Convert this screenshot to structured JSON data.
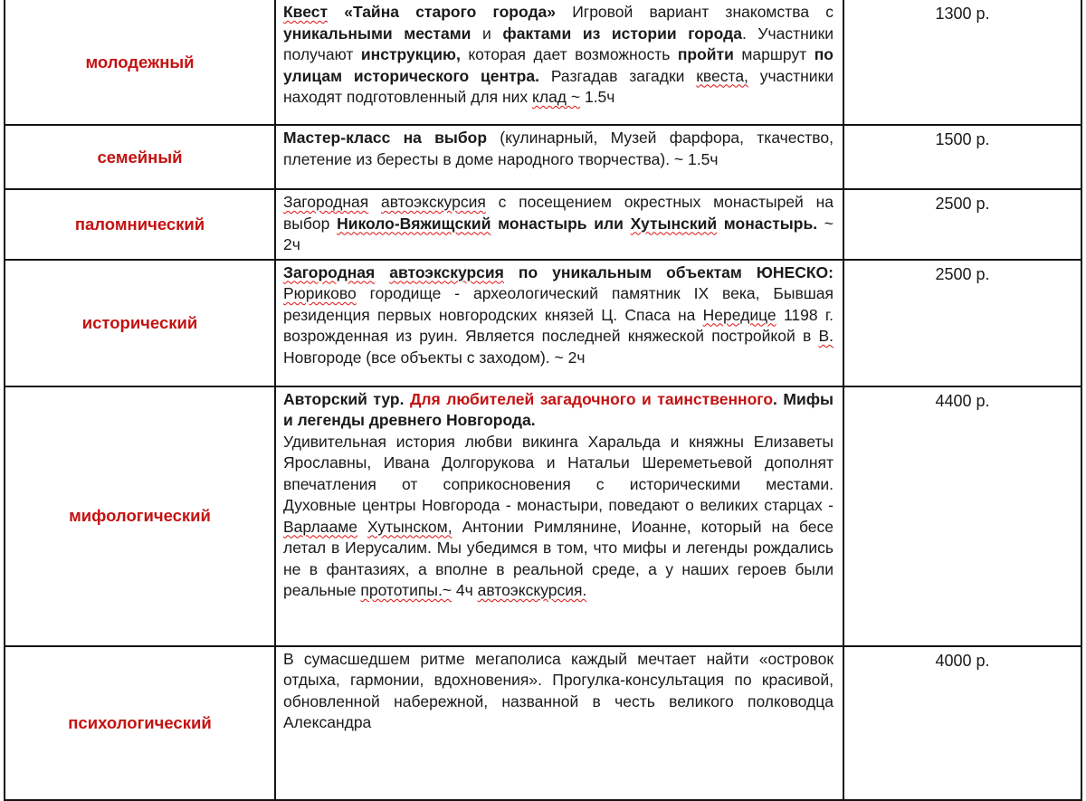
{
  "page": {
    "background": "#ffffff",
    "text_color": "#1a1a1a",
    "accent_red": "#c41212",
    "spellcheck_red": "#e01010",
    "border_color": "#141414",
    "currency_suffix": "р."
  },
  "table": {
    "rows": [
      {
        "type": "молодежный",
        "price": "1300 р.",
        "paragraphs": [
          {
            "runs": [
              {
                "text": "Квест",
                "b": true,
                "wavy": true
              },
              {
                "text": " «Тайна старого города»",
                "b": true
              },
              {
                "text": " Игровой вариант знакомства с "
              },
              {
                "text": "уникальными местами",
                "b": true
              },
              {
                "text": " и "
              },
              {
                "text": "фактами из истории города",
                "b": true
              },
              {
                "text": ". Участники получают "
              },
              {
                "text": "инструкцию,",
                "b": true
              },
              {
                "text": " которая дает возможность "
              },
              {
                "text": "пройти",
                "b": true
              },
              {
                "text": " маршрут "
              },
              {
                "text": "по улицам исторического центра.",
                "b": true
              },
              {
                "text": " Разгадав загадки "
              },
              {
                "text": "квеста,",
                "wavy": true
              },
              {
                "text": " участники находят подготовленный для них "
              },
              {
                "text": "клад ~",
                "wavy": true
              },
              {
                "text": " 1.5ч"
              }
            ]
          }
        ]
      },
      {
        "type": "семейный",
        "price": "1500 р.",
        "paragraphs": [
          {
            "runs": [
              {
                "text": "Мастер-класс на выбор",
                "b": true
              },
              {
                "text": " (кулинарный, Музей фарфора, ткачество, плетение из бересты в доме народного творчества). ~ 1.5ч"
              }
            ]
          }
        ]
      },
      {
        "type": "паломнический",
        "price": "2500 р.",
        "paragraphs": [
          {
            "runs": [
              {
                "text": "Загородная",
                "wavy": true
              },
              {
                "text": " "
              },
              {
                "text": "автоэкскурсия",
                "wavy": true
              },
              {
                "text": " с посещением окрестных монастырей на выбор "
              },
              {
                "text": "Николо-Вяжищский",
                "b": true,
                "wavy": true
              },
              {
                "text": " монастырь или ",
                "b": true
              },
              {
                "text": "Хутынский",
                "b": true,
                "wavy": true
              },
              {
                "text": " монастырь.",
                "b": true
              },
              {
                "text": " ~ 2ч"
              }
            ]
          }
        ]
      },
      {
        "type": "исторический",
        "price": "2500 р.",
        "paragraphs": [
          {
            "runs": [
              {
                "text": "Загородная",
                "b": true,
                "wavy": true
              },
              {
                "text": " ",
                "b": true
              },
              {
                "text": "автоэкскурсия",
                "b": true,
                "wavy": true
              },
              {
                "text": " по уникальным объектам ЮНЕСКО:",
                "b": true
              },
              {
                "text": " "
              },
              {
                "text": "Рюриково",
                "wavy": true
              },
              {
                "text": " городище - археологический памятник IX века, Бывшая резиденция первых новгородских князей Ц. Спаса на "
              },
              {
                "text": "Нередице",
                "wavy": true
              },
              {
                "text": " 1198 г. возрожденная из руин. Является последней княжеской постройкой в "
              },
              {
                "text": "В.",
                "wavy": true
              },
              {
                "text": " Новгороде (все объекты с заходом). ~ 2ч"
              }
            ]
          }
        ]
      },
      {
        "type": "мифологический",
        "price": "4400 р.",
        "paragraphs": [
          {
            "runs": [
              {
                "text": "Авторский тур. ",
                "b": true
              },
              {
                "text": "Для любителей загадочного и таинственного",
                "b": true,
                "red": true
              },
              {
                "text": ". Мифы и легенды древнего Новгорода.",
                "b": true
              }
            ]
          },
          {
            "justify_last": true,
            "runs": [
              {
                "text": "Удивительная история любви викинга Харальда и княжны Елизаветы Ярославны, Ивана Долгорукова и Натальи Шереметьевой дополнят впечатления от соприкосновения с историческими местами."
              }
            ]
          },
          {
            "runs": [
              {
                "text": "Духовные центры Новгорода - монастыри, поведают о великих старцах - "
              },
              {
                "text": "Варлааме",
                "wavy": true
              },
              {
                "text": " "
              },
              {
                "text": "Хутынском,",
                "wavy": true
              },
              {
                "text": " Антонии Римлянине, Иоанне, который на бесе летал в Иерусалим. Мы убедимся в том, что мифы и легенды рождались не в фантазиях, а вполне в реальной среде, а у наших героев были реальные "
              },
              {
                "text": "прототипы.~",
                "wavy": true
              },
              {
                "text": " 4ч "
              },
              {
                "text": "автоэкскурсия.",
                "wavy": true
              }
            ]
          }
        ]
      },
      {
        "type": "психологический",
        "price": "4000 р.",
        "paragraphs": [
          {
            "runs": [
              {
                "text": "В сумасшедшем ритме мегаполиса каждый мечтает найти «островок отдыха, гармонии, вдохновения». Прогулка-консультация по красивой, обновленной набережной, названной в честь великого полководца Александра"
              }
            ]
          }
        ]
      }
    ]
  }
}
